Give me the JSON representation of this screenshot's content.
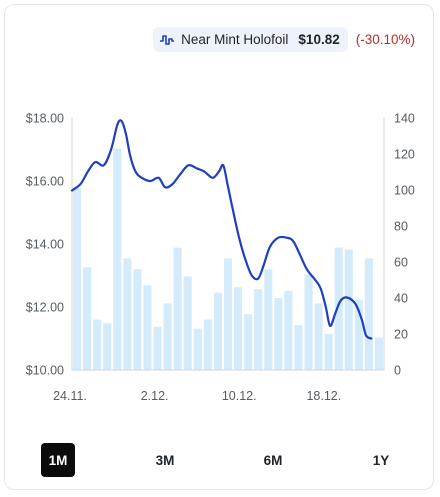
{
  "legend": {
    "label": "Near Mint Holofoil",
    "price": "$10.82",
    "change": "(-30.10%)",
    "icon": "line-chart-icon",
    "price_color": "#1e3fbf",
    "volume_color": "#d3ebfb",
    "change_color": "#c62828"
  },
  "ranges": [
    {
      "label": "1M",
      "active": true
    },
    {
      "label": "3M",
      "active": false
    },
    {
      "label": "6M",
      "active": false
    },
    {
      "label": "1Y",
      "active": false
    }
  ],
  "chart_data": {
    "type": "line",
    "title": "",
    "xlabel": "",
    "ylabel": "",
    "y_left": {
      "range": [
        10,
        18
      ],
      "ticks": [
        "$10.00",
        "$12.00",
        "$14.00",
        "$16.00",
        "$18.00"
      ],
      "tick_values": [
        10,
        12,
        14,
        16,
        18
      ]
    },
    "y_right": {
      "range": [
        0,
        140
      ],
      "ticks": [
        "0",
        "20",
        "40",
        "60",
        "80",
        "100",
        "120",
        "140"
      ],
      "tick_values": [
        0,
        20,
        40,
        60,
        80,
        100,
        120,
        140
      ]
    },
    "x_ticks": [
      {
        "label": "24.11.",
        "day": 0
      },
      {
        "label": "2.12.",
        "day": 8
      },
      {
        "label": "10.12.",
        "day": 16
      },
      {
        "label": "18.12.",
        "day": 24
      }
    ],
    "grid": false,
    "series": [
      {
        "kind": "line",
        "axis": "left",
        "days": [
          0,
          0.8,
          1.5,
          2.2,
          3.0,
          3.7,
          4.3,
          4.7,
          5.1,
          5.5,
          6.0,
          6.6,
          7.4,
          8.2,
          8.8,
          9.5,
          10.2,
          11.0,
          11.8,
          12.5,
          13.3,
          13.9,
          14.3,
          14.7,
          15.2,
          15.8,
          16.4,
          17.0,
          17.6,
          18.1,
          18.7,
          19.5,
          20.3,
          20.9,
          21.5,
          22.2,
          22.9,
          23.5,
          24.0,
          24.4,
          24.9,
          25.4,
          26.0,
          26.8,
          27.4,
          27.8,
          28.3
        ],
        "values": [
          15.7,
          15.9,
          16.3,
          16.6,
          16.5,
          17.0,
          17.8,
          17.9,
          17.5,
          16.8,
          16.3,
          16.1,
          16.0,
          16.1,
          15.8,
          15.9,
          16.2,
          16.5,
          16.4,
          16.3,
          16.1,
          16.3,
          16.5,
          15.9,
          15.1,
          14.2,
          13.5,
          13.0,
          12.9,
          13.3,
          13.9,
          14.2,
          14.2,
          14.1,
          13.7,
          13.2,
          12.9,
          12.6,
          12.0,
          11.4,
          11.8,
          12.2,
          12.3,
          12.1,
          11.6,
          11.1,
          11.0
        ]
      },
      {
        "kind": "bar",
        "axis": "right",
        "values": [
          101,
          57,
          28,
          26,
          123,
          62,
          56,
          47,
          24,
          37,
          68,
          52,
          23,
          28,
          43,
          62,
          46,
          31,
          45,
          56,
          40,
          44,
          25,
          53,
          37,
          20,
          68,
          67,
          39,
          62,
          18
        ]
      }
    ]
  }
}
